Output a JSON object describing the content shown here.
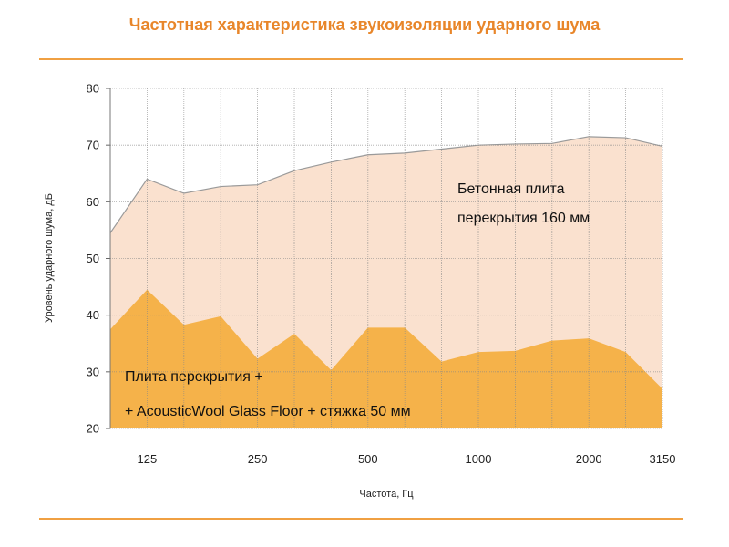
{
  "title": "Частотная характеристика звукоизоляции ударного шума",
  "colors": {
    "accent": "#e8862a",
    "rule": "#f0a042",
    "series_concrete": "#fae1cf",
    "series_floor": "#f5b24a",
    "grid": "#888888"
  },
  "chart_data": {
    "type": "area",
    "title": "Частотная характеристика звукоизоляции ударного шума",
    "xlabel": "Частота, Гц",
    "ylabel": "Уровень ударного шума,  дБ",
    "ylim": [
      20,
      80
    ],
    "yticks": [
      20,
      30,
      40,
      50,
      60,
      70,
      80
    ],
    "x": [
      100,
      125,
      160,
      200,
      250,
      315,
      400,
      500,
      630,
      800,
      1000,
      1250,
      1600,
      2000,
      2500,
      3150
    ],
    "x_tick_labels": [
      "",
      "125",
      "",
      "",
      "250",
      "",
      "",
      "500",
      "",
      "",
      "1000",
      "",
      "",
      "2000",
      "",
      "3150"
    ],
    "grid": true,
    "series": [
      {
        "name_lines": [
          "Бетонная плита",
          "перекрытия 160 мм"
        ],
        "color": "#fae1cf",
        "values": [
          54.5,
          64,
          61.5,
          62.7,
          63,
          65.5,
          67,
          68.3,
          68.6,
          69.3,
          70,
          70.2,
          70.3,
          71.5,
          71.3,
          69.8
        ]
      },
      {
        "name_lines": [
          "Плита перекрытия +",
          "+ AcousticWool  Glass Floor + стяжка  50 мм"
        ],
        "color": "#f5b24a",
        "values": [
          37.5,
          44.5,
          38.3,
          39.8,
          32.3,
          36.7,
          30.3,
          37.8,
          37.8,
          31.8,
          33.5,
          33.7,
          35.5,
          35.9,
          33.5,
          27
        ]
      }
    ]
  }
}
